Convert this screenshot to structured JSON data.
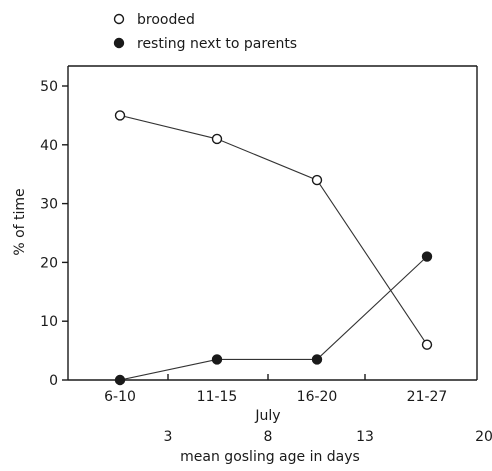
{
  "chart_data": {
    "type": "line",
    "title": "",
    "xlabel": "mean gosling age in days",
    "ylabel": "% of time",
    "month_label": "July",
    "categories": [
      "6-10",
      "11-15",
      "16-20",
      "21-27"
    ],
    "age_ticks": [
      "3",
      "8",
      "13",
      "20"
    ],
    "ylim": [
      0,
      50
    ],
    "yticks": [
      0,
      10,
      20,
      30,
      40,
      50
    ],
    "grid": false,
    "legend_position": "top-left",
    "series": [
      {
        "name": "brooded",
        "marker": "open-circle",
        "color": "#1a1a1a",
        "values": [
          45,
          41,
          34,
          6
        ]
      },
      {
        "name": "resting next to parents",
        "marker": "filled-circle",
        "color": "#1a1a1a",
        "values": [
          0,
          3.5,
          3.5,
          21
        ]
      }
    ]
  }
}
